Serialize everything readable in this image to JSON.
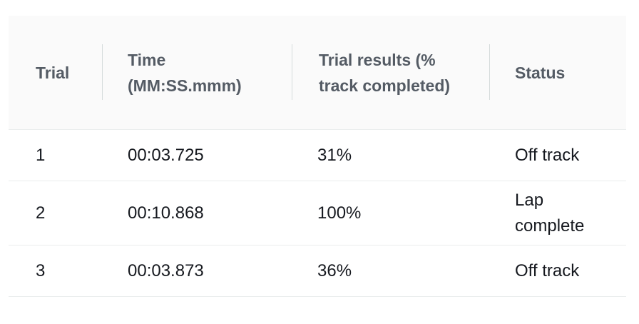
{
  "table": {
    "headers": {
      "trial": "Trial",
      "time": "Time (MM:SS.mmm)",
      "results": "Trial results (% track completed)",
      "status": "Status"
    },
    "rows": [
      {
        "trial": "1",
        "time": "00:03.725",
        "results": "31%",
        "status": "Off track"
      },
      {
        "trial": "2",
        "time": "00:10.868",
        "results": "100%",
        "status": "Lap complete"
      },
      {
        "trial": "3",
        "time": "00:03.873",
        "results": "36%",
        "status": "Off track"
      }
    ]
  },
  "colors": {
    "header_background": "#fafafa",
    "header_text": "#545b64",
    "body_text": "#16191f",
    "row_border": "#eaeded",
    "column_divider": "#d5dbdb"
  }
}
